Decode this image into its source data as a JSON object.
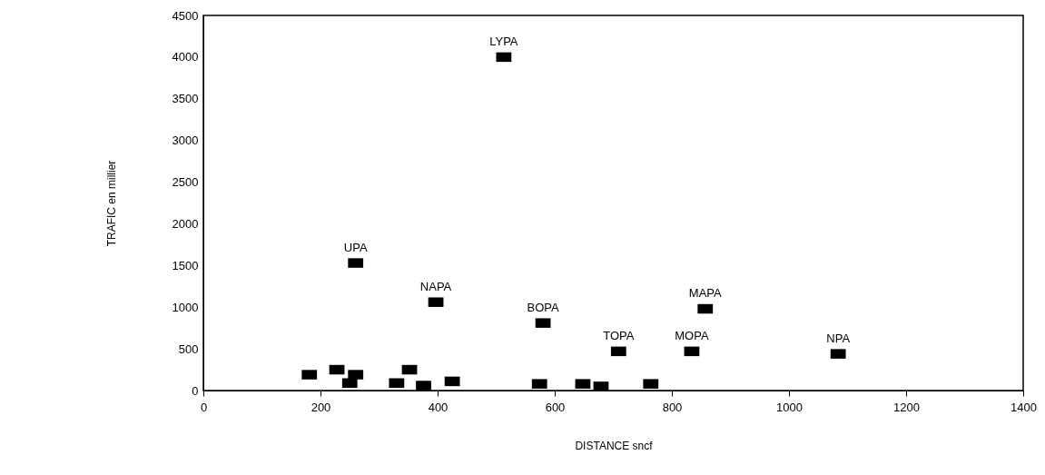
{
  "chart_data": {
    "type": "scatter",
    "xlabel": "DISTANCE sncf",
    "ylabel": "TRAFIC en millier",
    "x": [
      181,
      228,
      250,
      260,
      260,
      330,
      352,
      376,
      397,
      425,
      513,
      574,
      580,
      648,
      679,
      709,
      764,
      834,
      857,
      1084
    ],
    "series": [
      {
        "color": "#000000",
        "values": [
          190,
          250,
          90,
          190,
          1530,
          90,
          250,
          60,
          1060,
          110,
          4000,
          80,
          810,
          80,
          50,
          470,
          80,
          470,
          980,
          440
        ]
      }
    ],
    "xlim": [
      0,
      1400
    ],
    "xticks": [
      0,
      200,
      400,
      600,
      800,
      1000,
      1200,
      1400
    ],
    "ylim": [
      0,
      4500
    ],
    "yticks": [
      0,
      500,
      1000,
      1500,
      2000,
      2500,
      3000,
      3500,
      4000,
      4500
    ],
    "grid": false,
    "marker": "square",
    "annotations": [
      {
        "text": "UPA",
        "x": 260,
        "y": 1530
      },
      {
        "text": "NAPA",
        "x": 397,
        "y": 1060
      },
      {
        "text": "LYPA",
        "x": 513,
        "y": 4000
      },
      {
        "text": "BOPA",
        "x": 580,
        "y": 810
      },
      {
        "text": "TOPA",
        "x": 709,
        "y": 470
      },
      {
        "text": "MOPA",
        "x": 834,
        "y": 470
      },
      {
        "text": "MAPA",
        "x": 857,
        "y": 980
      },
      {
        "text": "NPA",
        "x": 1084,
        "y": 440
      }
    ]
  }
}
